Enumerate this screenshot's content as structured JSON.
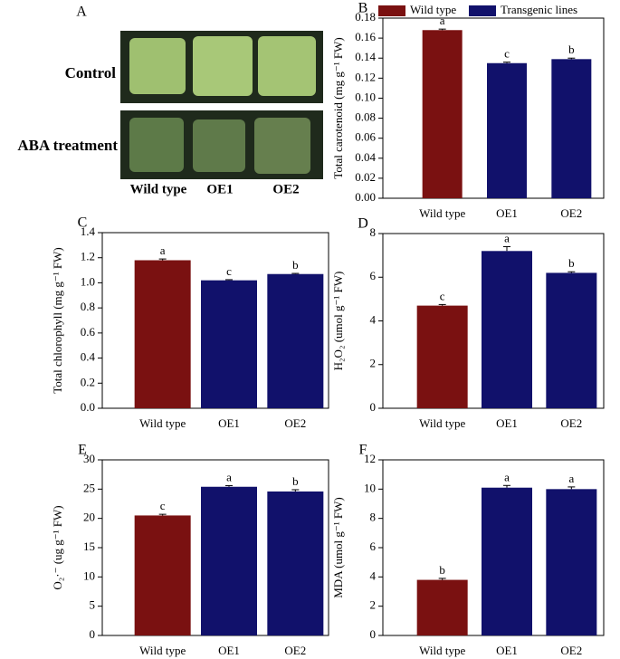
{
  "photo_panel": {
    "label": "A",
    "rows": [
      "Control",
      "ABA treatment"
    ],
    "columns": [
      "Wild type",
      "OE1",
      "OE2"
    ]
  },
  "chart_data": [
    {
      "type": "bar",
      "panel": "B",
      "y_label": "Total carotenoid (mg g⁻¹ FW)",
      "categories": [
        "Wild type",
        "OE1",
        "OE2"
      ],
      "values": [
        0.168,
        0.135,
        0.139
      ],
      "errors": [
        0.001,
        0.001,
        0.001
      ],
      "annotations": [
        "a",
        "c",
        "b"
      ],
      "colors": [
        "#7a1111",
        "#11116b",
        "#11116b"
      ],
      "legend": [
        {
          "name": "Wild type",
          "color": "#7a1111"
        },
        {
          "name": "Transgenic lines",
          "color": "#11116b"
        }
      ],
      "ylim": [
        0,
        0.18
      ],
      "yticks": [
        {
          "value": 0,
          "label": "0.00"
        },
        {
          "value": 0.02,
          "label": "0.02"
        },
        {
          "value": 0.04,
          "label": "0.04"
        },
        {
          "value": 0.06,
          "label": "0.06"
        },
        {
          "value": 0.08,
          "label": "0.08"
        },
        {
          "value": 0.1,
          "label": "0.10"
        },
        {
          "value": 0.12,
          "label": "0.12"
        },
        {
          "value": 0.14,
          "label": "0.14"
        },
        {
          "value": 0.16,
          "label": "0.16"
        },
        {
          "value": 0.18,
          "label": "0.18"
        }
      ]
    },
    {
      "type": "bar",
      "panel": "C",
      "y_label": "Total chlorophyll (mg g⁻¹ FW)",
      "categories": [
        "Wild type",
        "OE1",
        "OE2"
      ],
      "values": [
        1.18,
        1.02,
        1.07
      ],
      "errors": [
        0.01,
        0.005,
        0.005
      ],
      "annotations": [
        "a",
        "c",
        "b"
      ],
      "colors": [
        "#7a1111",
        "#11116b",
        "#11116b"
      ],
      "ylim": [
        0,
        1.4
      ],
      "yticks": [
        {
          "value": 0,
          "label": "0.0"
        },
        {
          "value": 0.2,
          "label": "0.2"
        },
        {
          "value": 0.4,
          "label": "0.4"
        },
        {
          "value": 0.6,
          "label": "0.6"
        },
        {
          "value": 0.8,
          "label": "0.8"
        },
        {
          "value": 1,
          "label": "1.0"
        },
        {
          "value": 1.2,
          "label": "1.2"
        },
        {
          "value": 1.4,
          "label": "1.4"
        }
      ]
    },
    {
      "type": "bar",
      "panel": "D",
      "y_label": "H₂O₂ (umol g⁻¹ FW)",
      "categories": [
        "Wild type",
        "OE1",
        "OE2"
      ],
      "values": [
        4.7,
        7.2,
        6.2
      ],
      "errors": [
        0.05,
        0.2,
        0.05
      ],
      "annotations": [
        "c",
        "a",
        "b"
      ],
      "colors": [
        "#7a1111",
        "#11116b",
        "#11116b"
      ],
      "ylim": [
        0,
        8
      ],
      "yticks": [
        0,
        2,
        4,
        6,
        8
      ]
    },
    {
      "type": "bar",
      "panel": "E",
      "y_label": "O₂·⁻ (ug g⁻¹ FW)",
      "categories": [
        "Wild type",
        "OE1",
        "OE2"
      ],
      "values": [
        20.5,
        25.4,
        24.6
      ],
      "errors": [
        0.2,
        0.2,
        0.3
      ],
      "annotations": [
        "c",
        "a",
        "b"
      ],
      "colors": [
        "#7a1111",
        "#11116b",
        "#11116b"
      ],
      "ylim": [
        0,
        30
      ],
      "yticks": [
        0,
        5,
        10,
        15,
        20,
        25,
        30
      ]
    },
    {
      "type": "bar",
      "panel": "F",
      "y_label": "MDA (umol g⁻¹ FW)",
      "categories": [
        "Wild type",
        "OE1",
        "OE2"
      ],
      "values": [
        3.8,
        10.1,
        10.0
      ],
      "errors": [
        0.1,
        0.15,
        0.15
      ],
      "annotations": [
        "b",
        "a",
        "a"
      ],
      "colors": [
        "#7a1111",
        "#11116b",
        "#11116b"
      ],
      "ylim": [
        0,
        12
      ],
      "yticks": [
        0,
        2,
        4,
        6,
        8,
        10,
        12
      ]
    }
  ]
}
